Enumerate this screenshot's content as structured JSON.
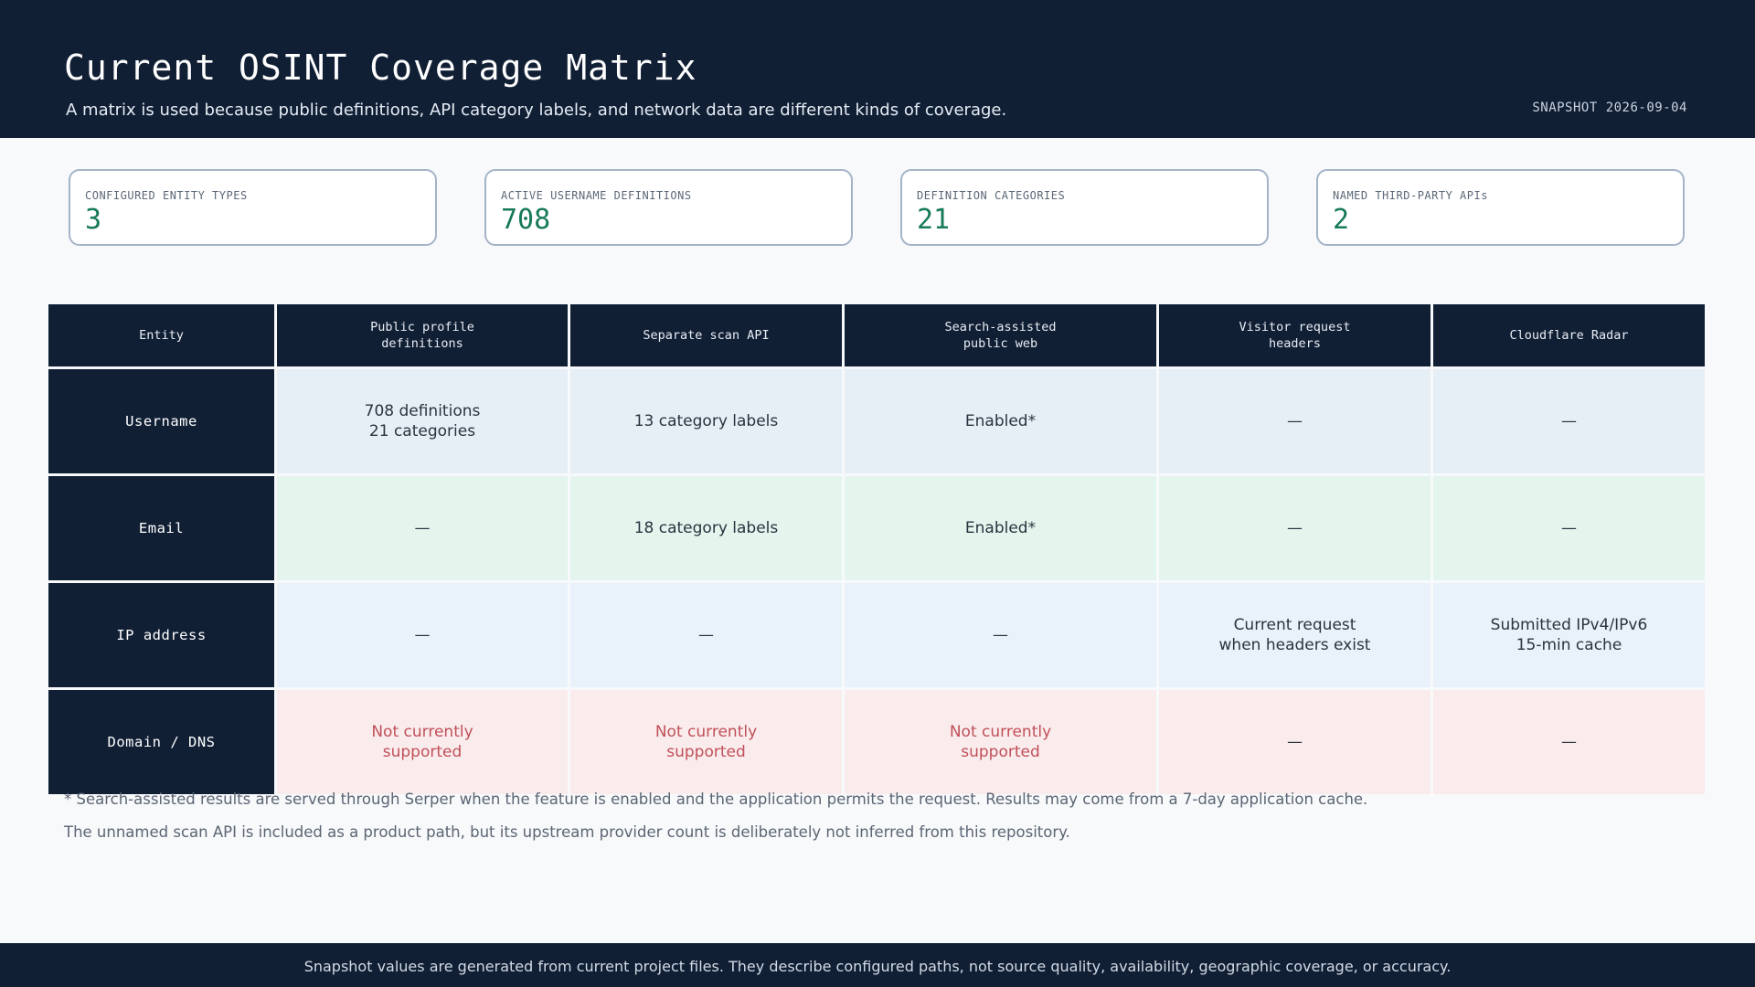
{
  "header": {
    "title": "Current OSINT Coverage Matrix",
    "subtitle": "A matrix is used because public definitions, API category labels, and network data are different kinds of coverage.",
    "snapshot": "SNAPSHOT 2026-09-04"
  },
  "stats": [
    {
      "label": "CONFIGURED ENTITY TYPES",
      "value": "3"
    },
    {
      "label": "ACTIVE USERNAME DEFINITIONS",
      "value": "708"
    },
    {
      "label": "DEFINITION CATEGORIES",
      "value": "21"
    },
    {
      "label": "NAMED THIRD-PARTY APIs",
      "value": "2"
    }
  ],
  "table": {
    "headers": [
      [
        "Entity"
      ],
      [
        "Public profile",
        "definitions"
      ],
      [
        "Separate scan API"
      ],
      [
        "Search-assisted",
        "public web"
      ],
      [
        "Visitor request",
        "headers"
      ],
      [
        "Cloudflare Radar"
      ]
    ],
    "rows": [
      {
        "entity": "Username",
        "cells": [
          [
            "708 definitions",
            "21 categories"
          ],
          [
            "13 category labels"
          ],
          [
            "Enabled*"
          ],
          [
            "—"
          ],
          [
            "—"
          ]
        ]
      },
      {
        "entity": "Email",
        "cells": [
          [
            "—"
          ],
          [
            "18 category labels"
          ],
          [
            "Enabled*"
          ],
          [
            "—"
          ],
          [
            "—"
          ]
        ]
      },
      {
        "entity": "IP address",
        "cells": [
          [
            "—"
          ],
          [
            "—"
          ],
          [
            "—"
          ],
          [
            "Current request",
            "when headers exist"
          ],
          [
            "Submitted IPv4/IPv6",
            "15-min cache"
          ]
        ]
      },
      {
        "entity": "Domain / DNS",
        "cells": [
          [
            "Not currently",
            "supported"
          ],
          [
            "Not currently",
            "supported"
          ],
          [
            "Not currently",
            "supported"
          ],
          [
            "—"
          ],
          [
            "—"
          ]
        ]
      }
    ]
  },
  "colors": {
    "header_bg": "#111f35",
    "accent_value": "#177a58",
    "unsupported_text": "#c0505a"
  },
  "footnotes": [
    "* Search-assisted results are served through Serper when the feature is enabled and the application permits the request. Results may come from a 7-day application cache.",
    "The unnamed scan API is included as a product path, but its upstream provider count is deliberately not inferred from this repository."
  ],
  "footer": {
    "text": "Snapshot values are generated from current project files. They describe configured paths, not source quality, availability, geographic coverage, or accuracy."
  }
}
